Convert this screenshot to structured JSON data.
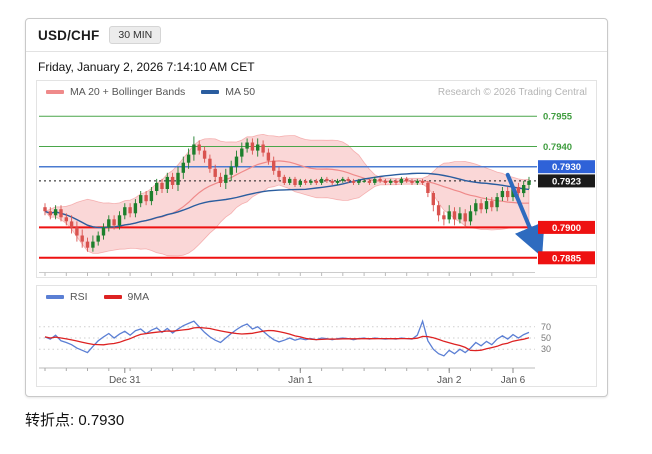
{
  "header": {
    "symbol": "USD/CHF",
    "timeframe": "30 MIN"
  },
  "datetime": "Friday, January 2, 2026 7:14:10 AM CET",
  "legend": {
    "bollinger": "MA 20 + Bollinger Bands",
    "ma50": "MA 50",
    "rsi": "RSI",
    "rsi_ma": "9MA"
  },
  "research_credit": "Research © 2026 Trading Central",
  "footer": {
    "pivot_label": "转折点: 0.7930"
  },
  "levels": [
    {
      "value": 0.7955,
      "label": "0.7955",
      "type": "resistance",
      "line_color": "#4aa64a",
      "line_width": 1,
      "label_bg": null,
      "label_color": "#3f9d3f"
    },
    {
      "value": 0.794,
      "label": "0.7940",
      "type": "resistance",
      "line_color": "#4aa64a",
      "line_width": 1,
      "label_bg": null,
      "label_color": "#3f9d3f"
    },
    {
      "value": 0.793,
      "label": "0.7930",
      "type": "pivot",
      "line_color": "#4a7bd0",
      "line_width": 1.5,
      "label_bg": "#2f62d8",
      "label_color": "#ffffff"
    },
    {
      "value": 0.7923,
      "label": "0.7923",
      "type": "last-price",
      "line_color": "#1a1a1a",
      "line_width": 1,
      "line_style": "dotted",
      "label_bg": "#1a1a1a",
      "label_color": "#ffffff"
    },
    {
      "value": 0.79,
      "label": "0.7900",
      "type": "support",
      "line_color": "#ee1111",
      "line_width": 2,
      "label_bg": "#ee1111",
      "label_color": "#ffffff"
    },
    {
      "value": 0.7885,
      "label": "0.7885",
      "type": "support",
      "line_color": "#ee1111",
      "line_width": 2,
      "label_bg": "#ee1111",
      "label_color": "#ffffff"
    }
  ],
  "chart_data": {
    "type": "candlestick",
    "symbol": "USD/CHF",
    "interval": "30 MIN",
    "price_axis": {
      "max": 0.79625,
      "min": 0.78755
    },
    "colors": {
      "up": "#1d7f2c",
      "down": "#d9534f",
      "bb_fill": "rgba(242,154,154,0.40)",
      "bb_edge": "rgba(238,130,130,0.55)",
      "ma20": "#ef8a8a",
      "ma50": "#2a5d9f",
      "rsi": "#5b7fd4",
      "rsi_ma": "#dd2222"
    },
    "candles": {
      "open": [
        0.791,
        0.7908,
        0.7906,
        0.7909,
        0.7905,
        0.7903,
        0.79,
        0.7896,
        0.7893,
        0.789,
        0.7893,
        0.7896,
        0.79,
        0.7904,
        0.7901,
        0.7906,
        0.791,
        0.7907,
        0.7912,
        0.7916,
        0.7913,
        0.7918,
        0.7922,
        0.7919,
        0.7925,
        0.7921,
        0.7927,
        0.7932,
        0.7936,
        0.7941,
        0.7938,
        0.7934,
        0.7929,
        0.7925,
        0.7922,
        0.7926,
        0.793,
        0.7935,
        0.7939,
        0.7942,
        0.7938,
        0.7941,
        0.7937,
        0.7933,
        0.7928,
        0.7925,
        0.7922,
        0.7924,
        0.7921,
        0.7923,
        0.7922,
        0.7923,
        0.7922,
        0.7924,
        0.7923,
        0.7922,
        0.7923,
        0.7924,
        0.7923,
        0.7922,
        0.7923,
        0.7923,
        0.7922,
        0.7924,
        0.7923,
        0.7922,
        0.7923,
        0.7922,
        0.7924,
        0.7923,
        0.7922,
        0.7923,
        0.7922,
        0.7917,
        0.7911,
        0.7906,
        0.7904,
        0.7908,
        0.7904,
        0.7907,
        0.7903,
        0.7908,
        0.7912,
        0.7909,
        0.7913,
        0.791,
        0.7915,
        0.7918,
        0.7915,
        0.792,
        0.7917,
        0.7921
      ],
      "high": [
        0.7912,
        0.791,
        0.7911,
        0.7911,
        0.7907,
        0.7906,
        0.7903,
        0.7899,
        0.7895,
        0.7896,
        0.7898,
        0.7902,
        0.7906,
        0.7906,
        0.7908,
        0.7912,
        0.7912,
        0.7914,
        0.7918,
        0.7918,
        0.792,
        0.7924,
        0.7924,
        0.7927,
        0.7927,
        0.793,
        0.7935,
        0.7939,
        0.7945,
        0.7943,
        0.794,
        0.7936,
        0.7931,
        0.7927,
        0.7929,
        0.7933,
        0.7938,
        0.7942,
        0.7944,
        0.7944,
        0.7944,
        0.7943,
        0.7939,
        0.7935,
        0.793,
        0.7926,
        0.7925,
        0.7925,
        0.7924,
        0.7924,
        0.7924,
        0.7924,
        0.7925,
        0.7925,
        0.7924,
        0.7924,
        0.7925,
        0.7925,
        0.7924,
        0.7924,
        0.7924,
        0.7924,
        0.7925,
        0.7925,
        0.7924,
        0.7924,
        0.7924,
        0.7925,
        0.7925,
        0.7924,
        0.7924,
        0.7924,
        0.7923,
        0.7918,
        0.7913,
        0.7908,
        0.7911,
        0.791,
        0.791,
        0.7909,
        0.7911,
        0.7914,
        0.7914,
        0.7915,
        0.7915,
        0.7917,
        0.792,
        0.792,
        0.7922,
        0.7922,
        0.7923,
        0.7925
      ],
      "low": [
        0.7906,
        0.7904,
        0.7904,
        0.7903,
        0.7901,
        0.7897,
        0.7893,
        0.789,
        0.7888,
        0.7888,
        0.7891,
        0.7894,
        0.7898,
        0.7899,
        0.7899,
        0.7904,
        0.7905,
        0.7905,
        0.791,
        0.7911,
        0.7911,
        0.7916,
        0.7917,
        0.7917,
        0.7919,
        0.7918,
        0.7924,
        0.7929,
        0.7933,
        0.7936,
        0.7932,
        0.7927,
        0.7923,
        0.792,
        0.7919,
        0.7923,
        0.7927,
        0.7932,
        0.7937,
        0.7936,
        0.7935,
        0.7935,
        0.7931,
        0.7926,
        0.7923,
        0.7921,
        0.7921,
        0.792,
        0.792,
        0.7921,
        0.7921,
        0.7921,
        0.7921,
        0.7922,
        0.7921,
        0.7921,
        0.7922,
        0.7922,
        0.7921,
        0.7921,
        0.7922,
        0.7921,
        0.7921,
        0.7922,
        0.7921,
        0.7921,
        0.7921,
        0.7921,
        0.7922,
        0.7921,
        0.7921,
        0.7921,
        0.7915,
        0.7908,
        0.7903,
        0.7901,
        0.7902,
        0.7901,
        0.7902,
        0.79,
        0.7901,
        0.7906,
        0.7907,
        0.7907,
        0.7908,
        0.7908,
        0.7913,
        0.7913,
        0.7913,
        0.7915,
        0.7915,
        0.7919
      ],
      "close": [
        0.7908,
        0.7906,
        0.7909,
        0.7905,
        0.7903,
        0.79,
        0.7896,
        0.7893,
        0.789,
        0.7893,
        0.7896,
        0.79,
        0.7904,
        0.7901,
        0.7906,
        0.791,
        0.7907,
        0.7912,
        0.7916,
        0.7913,
        0.7918,
        0.7922,
        0.7919,
        0.7925,
        0.7921,
        0.7927,
        0.7932,
        0.7936,
        0.7941,
        0.7938,
        0.7934,
        0.7929,
        0.7925,
        0.7922,
        0.7926,
        0.793,
        0.7935,
        0.7939,
        0.7942,
        0.7938,
        0.7941,
        0.7937,
        0.7933,
        0.7928,
        0.7925,
        0.7922,
        0.7924,
        0.7921,
        0.7923,
        0.7922,
        0.7923,
        0.7922,
        0.7924,
        0.7923,
        0.7922,
        0.7923,
        0.7924,
        0.7923,
        0.7922,
        0.7923,
        0.7923,
        0.7922,
        0.7924,
        0.7923,
        0.7922,
        0.7923,
        0.7922,
        0.7924,
        0.7923,
        0.7922,
        0.7923,
        0.7922,
        0.7917,
        0.7911,
        0.7906,
        0.7904,
        0.7908,
        0.7904,
        0.7907,
        0.7903,
        0.7908,
        0.7912,
        0.7909,
        0.7913,
        0.791,
        0.7915,
        0.7918,
        0.7915,
        0.792,
        0.7917,
        0.7921,
        0.7923
      ]
    },
    "overlays": {
      "ma20_period": 20,
      "ma50_period": 50,
      "bollinger_stddev": 2
    },
    "x_labels": [
      {
        "label": "Dec 31",
        "index": 15
      },
      {
        "label": "Jan 1",
        "index": 48
      },
      {
        "label": "Jan 2",
        "index": 76
      },
      {
        "label": "Jan 6",
        "index": 88
      }
    ],
    "rsi": {
      "values": [
        52,
        48,
        55,
        45,
        42,
        38,
        32,
        28,
        24,
        35,
        45,
        52,
        58,
        50,
        57,
        62,
        55,
        63,
        66,
        58,
        64,
        68,
        60,
        67,
        59,
        66,
        72,
        76,
        80,
        70,
        60,
        52,
        46,
        42,
        50,
        58,
        65,
        71,
        75,
        66,
        70,
        62,
        54,
        47,
        43,
        46,
        50,
        46,
        49,
        47,
        49,
        47,
        50,
        49,
        47,
        49,
        50,
        49,
        47,
        49,
        50,
        48,
        50,
        49,
        48,
        49,
        48,
        50,
        49,
        48,
        55,
        80,
        45,
        30,
        22,
        18,
        28,
        22,
        30,
        24,
        32,
        42,
        36,
        44,
        38,
        48,
        54,
        48,
        56,
        50,
        56,
        60
      ],
      "ma_period": 9,
      "grid": [
        70,
        50,
        30
      ]
    },
    "arrow": {
      "from_index": 87,
      "from_price": 0.7926,
      "to_price": 0.7889,
      "color": "#2e6bbf"
    }
  }
}
